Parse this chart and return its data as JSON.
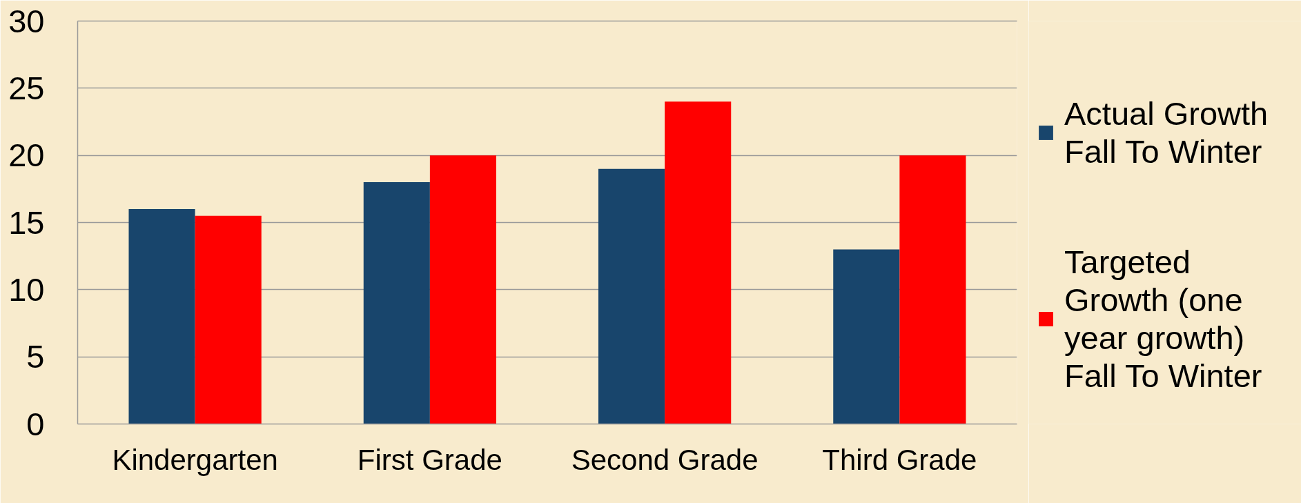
{
  "chart_data": {
    "type": "bar",
    "categories": [
      "Kindergarten",
      "First Grade",
      "Second Grade",
      "Third Grade"
    ],
    "series": [
      {
        "name": "Actual Growth Fall To Winter",
        "color": "#18456c",
        "values": [
          16,
          18,
          19,
          13
        ]
      },
      {
        "name": "Targeted Growth (one year growth) Fall To Winter",
        "color": "#ff0000",
        "values": [
          15.5,
          20,
          24,
          20
        ]
      }
    ],
    "ylim": [
      0,
      30
    ],
    "yticks": [
      0,
      5,
      10,
      15,
      20,
      25,
      30
    ],
    "grid": "y",
    "legend": "right"
  }
}
